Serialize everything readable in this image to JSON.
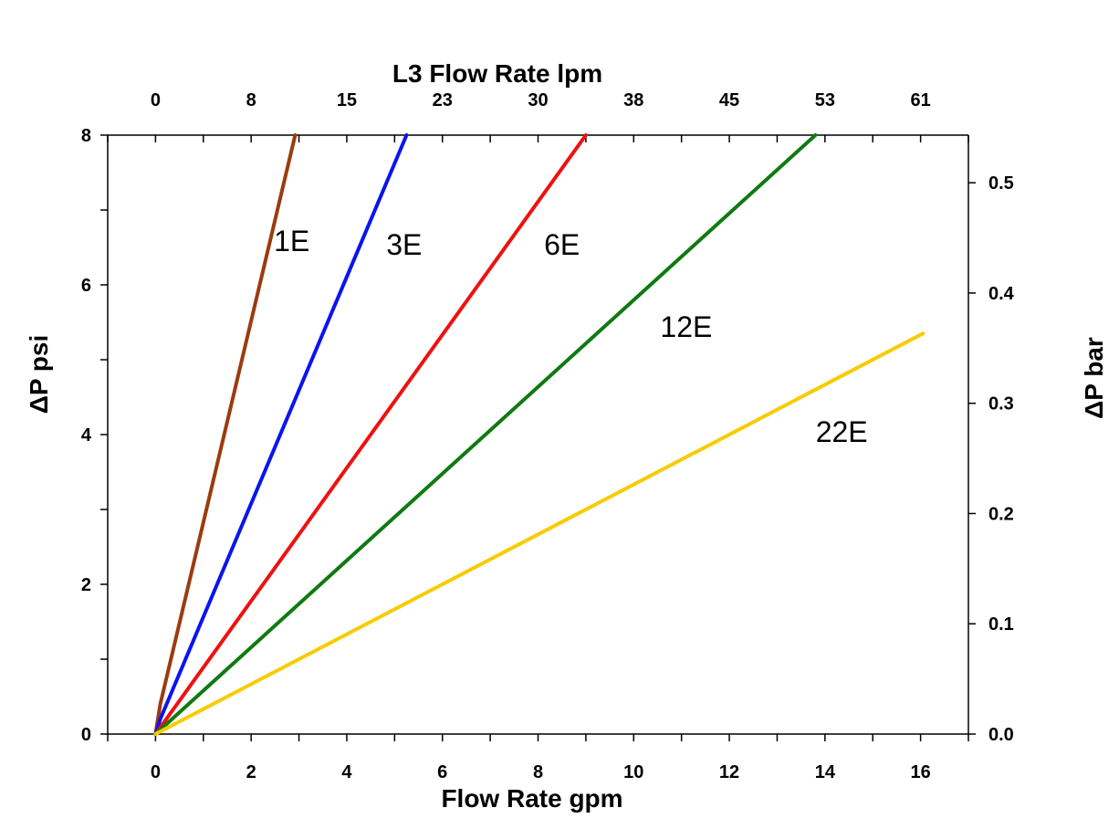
{
  "chart_data": {
    "type": "line",
    "xlabel": "Flow Rate gpm",
    "ylabel": "ΔP psi",
    "top_xlabel": "L3 Flow Rate lpm",
    "right_ylabel": "ΔP bar",
    "xlim": [
      -1,
      17
    ],
    "ylim": [
      0,
      8
    ],
    "right_ylim": [
      0,
      0.5432
    ],
    "x_ticks": [
      0,
      2,
      4,
      6,
      8,
      10,
      12,
      14,
      16
    ],
    "x_tick_labels": [
      "0",
      "2",
      "4",
      "6",
      "8",
      "10",
      "12",
      "14",
      "16"
    ],
    "x_minor_ticks": [
      -1,
      1,
      3,
      5,
      7,
      9,
      11,
      13,
      15,
      17
    ],
    "top_x_ticks": [
      0,
      2,
      4,
      6,
      8,
      10,
      12,
      14,
      16
    ],
    "top_x_tick_labels": [
      "0",
      "8",
      "15",
      "23",
      "30",
      "38",
      "45",
      "53",
      "61"
    ],
    "y_ticks": [
      0,
      2,
      4,
      6,
      8
    ],
    "y_tick_labels": [
      "0",
      "2",
      "4",
      "6",
      "8"
    ],
    "y_minor_ticks": [
      1,
      3,
      5,
      7
    ],
    "right_y_ticks": [
      0.0,
      0.1,
      0.2,
      0.3,
      0.4,
      0.5
    ],
    "right_y_tick_labels": [
      "0.0",
      "0.1",
      "0.2",
      "0.3",
      "0.4",
      "0.5"
    ],
    "series": [
      {
        "name": "1E",
        "color": "#9a3c0e",
        "x": [
          0,
          0.1,
          2.92
        ],
        "y": [
          0,
          0.4,
          8
        ],
        "label_at": [
          2.85,
          6.6
        ]
      },
      {
        "name": "3E",
        "color": "#0a14f0",
        "x": [
          0,
          0.1,
          5.25
        ],
        "y": [
          0,
          0.2,
          8
        ],
        "label_at": [
          5.2,
          6.55
        ]
      },
      {
        "name": "6E",
        "color": "#ee1111",
        "x": [
          0,
          9.0
        ],
        "y": [
          0,
          8
        ],
        "label_at": [
          8.5,
          6.55
        ]
      },
      {
        "name": "12E",
        "color": "#0f7a12",
        "x": [
          0,
          13.8
        ],
        "y": [
          0,
          8
        ],
        "label_at": [
          11.1,
          5.45
        ]
      },
      {
        "name": "22E",
        "color": "#f7cc00",
        "x": [
          0,
          16.05
        ],
        "y": [
          0,
          5.35
        ],
        "label_at": [
          14.35,
          4.05
        ]
      }
    ]
  }
}
